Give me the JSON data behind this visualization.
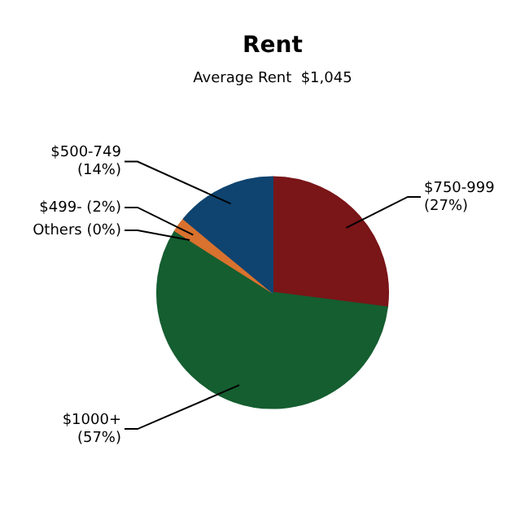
{
  "chart_data": {
    "type": "pie",
    "title": "Rent",
    "subtitle": "Average Rent  $1,045",
    "categories": [
      "$750-999",
      "$1000+",
      "Others",
      "$499-",
      "$500-749"
    ],
    "values": [
      27,
      57,
      0,
      2,
      14
    ],
    "value_labels": [
      "(27%)",
      "(57%)",
      "(0%)",
      "(2%)",
      "(14%)"
    ],
    "colors": [
      "#7a1518",
      "#155e30",
      "#9a9a9a",
      "#d9722e",
      "#0f4470"
    ]
  }
}
